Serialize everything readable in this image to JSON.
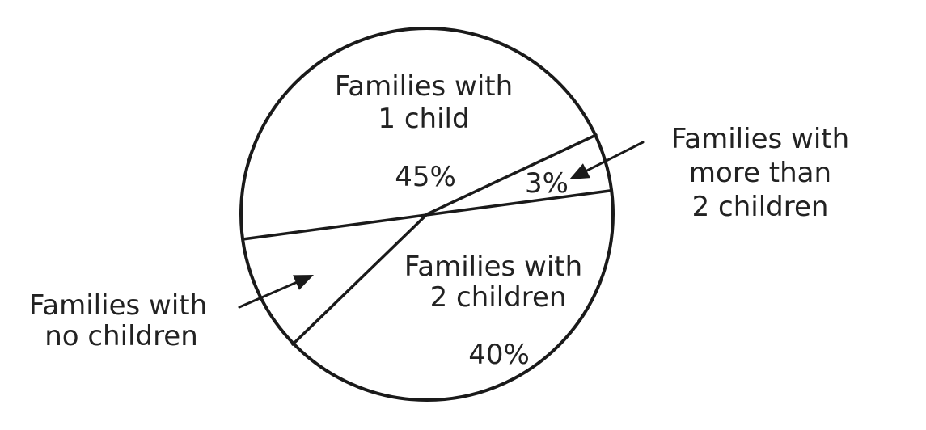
{
  "colors": {
    "ink": "#1a1a1a",
    "text": "#222222",
    "background": "#ffffff"
  },
  "chart_data": {
    "type": "pie",
    "slices": [
      {
        "label_lines": [
          "Families with",
          "1 child"
        ],
        "value_text": "45%",
        "value": 45
      },
      {
        "label_lines": [
          "Families with",
          "more than",
          "2 children"
        ],
        "value_text": "3%",
        "value": 3
      },
      {
        "label_lines": [
          "Families with",
          "2 children"
        ],
        "value_text": "40%",
        "value": 40
      },
      {
        "label_lines": [
          "Families with",
          "no children"
        ],
        "value_text": null,
        "value": 12
      }
    ],
    "legend": "none"
  }
}
